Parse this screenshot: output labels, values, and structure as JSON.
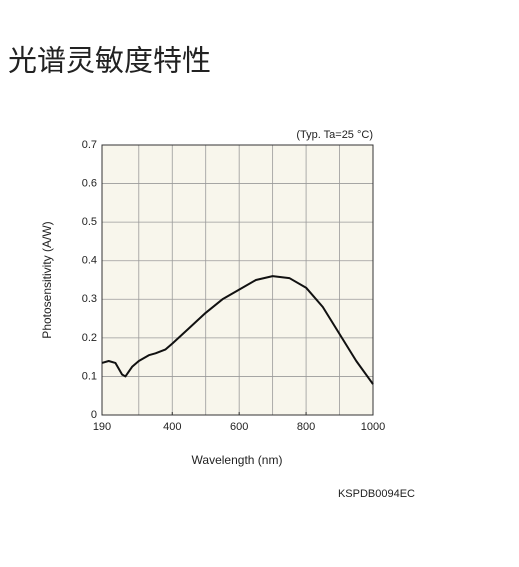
{
  "page_title": "光谱灵敏度特性",
  "chart_data": {
    "type": "line",
    "annotation": "(Typ. Ta=25 °C)",
    "code": "KSPDB0094EC",
    "x_label": "Wavelength (nm)",
    "y_label": "Photosensitivity  (A/W)",
    "x": [
      190,
      210,
      230,
      250,
      260,
      280,
      300,
      330,
      350,
      380,
      400,
      450,
      500,
      550,
      600,
      650,
      700,
      750,
      800,
      850,
      900,
      950,
      1000
    ],
    "series": [
      {
        "color": "#111111",
        "values": [
          0.135,
          0.14,
          0.135,
          0.105,
          0.1,
          0.125,
          0.14,
          0.155,
          0.16,
          0.17,
          0.185,
          0.225,
          0.265,
          0.3,
          0.325,
          0.35,
          0.36,
          0.355,
          0.33,
          0.28,
          0.21,
          0.14,
          0.08
        ]
      }
    ],
    "xlim": [
      190,
      1000
    ],
    "ylim": [
      0,
      0.7
    ],
    "xticks": [
      190,
      400,
      600,
      800,
      1000
    ],
    "xgrid": [
      300,
      400,
      500,
      600,
      700,
      800,
      900
    ],
    "yticks": [
      0,
      0.1,
      0.2,
      0.3,
      0.4,
      0.5,
      0.6,
      0.7
    ],
    "grid": true,
    "background": "#f8f6ec"
  }
}
